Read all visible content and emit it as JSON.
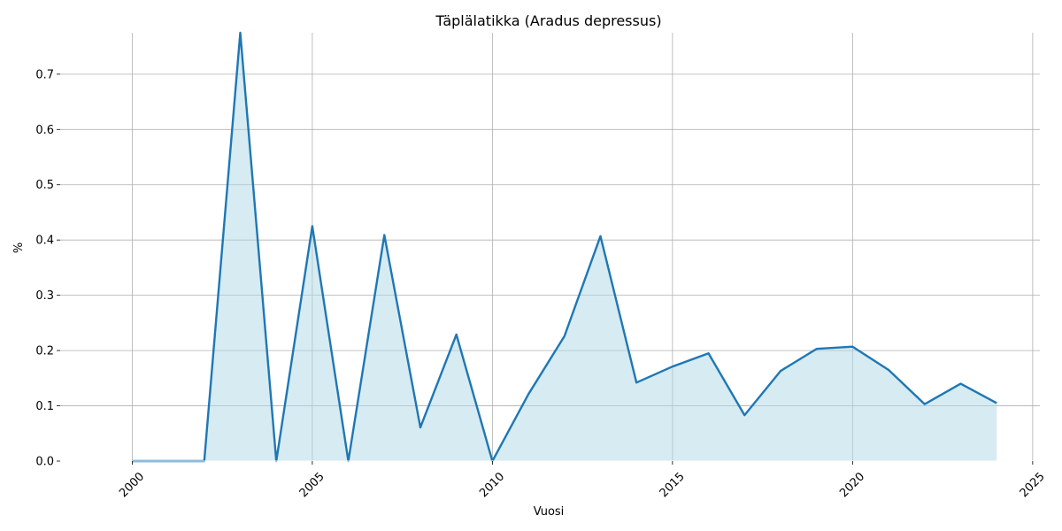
{
  "chart_data": {
    "type": "area",
    "title": "Täplälatikka (Aradus depressus)",
    "xlabel": "Vuosi",
    "ylabel": "%",
    "x": [
      2000,
      2001,
      2002,
      2003,
      2004,
      2005,
      2006,
      2007,
      2008,
      2009,
      2010,
      2011,
      2012,
      2013,
      2014,
      2015,
      2016,
      2017,
      2018,
      2019,
      2020,
      2021,
      2022,
      2023,
      2024
    ],
    "series": [
      {
        "values": [
          0,
          0,
          0,
          0.775,
          0,
          0.425,
          0,
          0.409,
          0.061,
          0.229,
          0,
          0.121,
          0.226,
          0.407,
          0.142,
          0.171,
          0.195,
          0.083,
          0.163,
          0.203,
          0.207,
          0.165,
          0.103,
          0.14,
          0.105
        ]
      }
    ],
    "xlim": [
      1998,
      2025.2
    ],
    "ylim": [
      0,
      0.775
    ],
    "xticks": [
      2000,
      2005,
      2010,
      2015,
      2020,
      2025
    ],
    "xtick_labels": [
      "2000",
      "2005",
      "2010",
      "2015",
      "2020",
      "2025"
    ],
    "yticks": [
      0,
      0.1,
      0.2,
      0.3,
      0.4,
      0.5,
      0.6,
      0.7
    ],
    "ytick_labels": [
      "0.0",
      "0.1",
      "0.2",
      "0.3",
      "0.4",
      "0.5",
      "0.6",
      "0.7"
    ],
    "grid": true,
    "colors": {
      "line": "#1f77b4",
      "fill": "#add8e6",
      "grid": "#b0b0b0"
    }
  }
}
